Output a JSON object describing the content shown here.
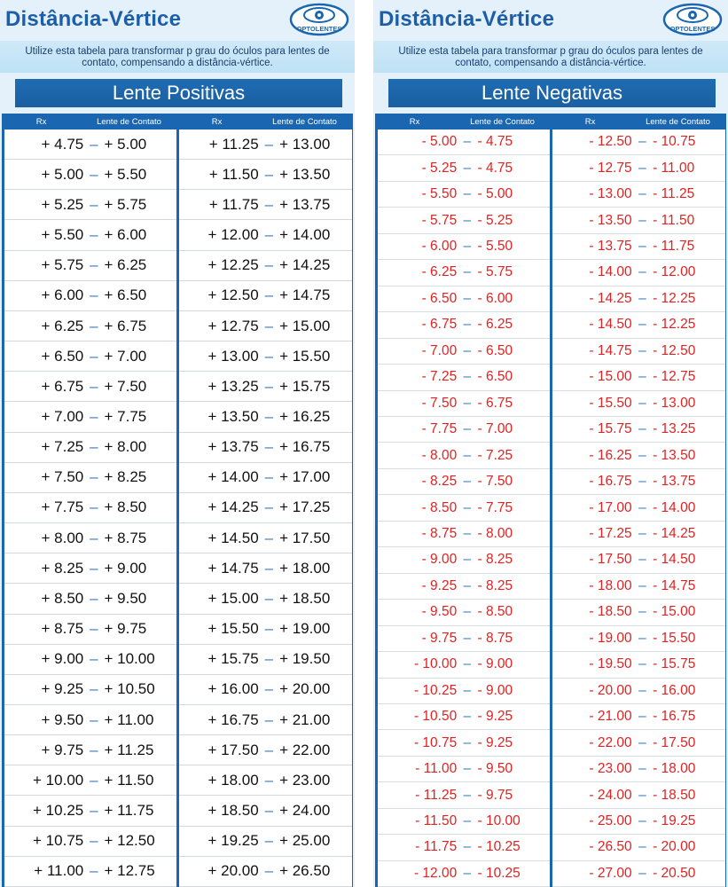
{
  "logo_text": "OPTOLENTES",
  "colors": {
    "primary_blue": "#1a66b0",
    "title_blue": "#1d5ea8",
    "negative_red": "#e22222",
    "panel_bg": "#e4f1fa"
  },
  "header": {
    "rx": "Rx",
    "contact": "Lente de Contato"
  },
  "left": {
    "title": "Distância-Vértice",
    "subtitle": "Utilize esta tabela para transformar p grau do óculos para lentes de contato, compensando a distância-vértice.",
    "banner": "Lente Positivas",
    "col1": [
      [
        "+ 4.75",
        "+ 5.00"
      ],
      [
        "+ 5.00",
        "+ 5.50"
      ],
      [
        "+ 5.25",
        "+ 5.75"
      ],
      [
        "+ 5.50",
        "+ 6.00"
      ],
      [
        "+ 5.75",
        "+ 6.25"
      ],
      [
        "+ 6.00",
        "+ 6.50"
      ],
      [
        "+ 6.25",
        "+ 6.75"
      ],
      [
        "+ 6.50",
        "+ 7.00"
      ],
      [
        "+ 6.75",
        "+ 7.50"
      ],
      [
        "+ 7.00",
        "+ 7.75"
      ],
      [
        "+ 7.25",
        "+ 8.00"
      ],
      [
        "+ 7.50",
        "+ 8.25"
      ],
      [
        "+ 7.75",
        "+ 8.50"
      ],
      [
        "+ 8.00",
        "+ 8.75"
      ],
      [
        "+ 8.25",
        "+ 9.00"
      ],
      [
        "+ 8.50",
        "+ 9.50"
      ],
      [
        "+ 8.75",
        "+ 9.75"
      ],
      [
        "+ 9.00",
        "+ 10.00"
      ],
      [
        "+ 9.25",
        "+ 10.50"
      ],
      [
        "+ 9.50",
        "+ 11.00"
      ],
      [
        "+ 9.75",
        "+ 11.25"
      ],
      [
        "+ 10.00",
        "+ 11.50"
      ],
      [
        "+ 10.25",
        "+ 11.75"
      ],
      [
        "+ 10.75",
        "+ 12.50"
      ],
      [
        "+ 11.00",
        "+ 12.75"
      ]
    ],
    "col2": [
      [
        "+ 11.25",
        "+ 13.00"
      ],
      [
        "+ 11.50",
        "+ 13.50"
      ],
      [
        "+ 11.75",
        "+ 13.75"
      ],
      [
        "+ 12.00",
        "+ 14.00"
      ],
      [
        "+ 12.25",
        "+ 14.25"
      ],
      [
        "+ 12.50",
        "+ 14.75"
      ],
      [
        "+ 12.75",
        "+ 15.00"
      ],
      [
        "+ 13.00",
        "+ 15.50"
      ],
      [
        "+ 13.25",
        "+ 15.75"
      ],
      [
        "+ 13.50",
        "+ 16.25"
      ],
      [
        "+ 13.75",
        "+ 16.75"
      ],
      [
        "+ 14.00",
        "+ 17.00"
      ],
      [
        "+ 14.25",
        "+ 17.25"
      ],
      [
        "+ 14.50",
        "+ 17.50"
      ],
      [
        "+ 14.75",
        "+ 18.00"
      ],
      [
        "+ 15.00",
        "+ 18.50"
      ],
      [
        "+ 15.50",
        "+ 19.00"
      ],
      [
        "+ 15.75",
        "+ 19.50"
      ],
      [
        "+ 16.00",
        "+ 20.00"
      ],
      [
        "+ 16.75",
        "+ 21.00"
      ],
      [
        "+ 17.50",
        "+ 22.00"
      ],
      [
        "+ 18.00",
        "+ 23.00"
      ],
      [
        "+ 18.50",
        "+ 24.00"
      ],
      [
        "+ 19.25",
        "+ 25.00"
      ],
      [
        "+ 20.00",
        "+ 26.50"
      ]
    ]
  },
  "right": {
    "title": "Distância-Vértice",
    "subtitle": "Utilize esta tabela para transformar p grau do óculos para lentes de contato, compensando a distância-vértice.",
    "banner": "Lente Negativas",
    "col1": [
      [
        "- 5.00",
        "- 4.75"
      ],
      [
        "- 5.25",
        "- 4.75"
      ],
      [
        "- 5.50",
        "- 5.00"
      ],
      [
        "- 5.75",
        "- 5.25"
      ],
      [
        "- 6.00",
        "- 5.50"
      ],
      [
        "- 6.25",
        "- 5.75"
      ],
      [
        "- 6.50",
        "- 6.00"
      ],
      [
        "- 6.75",
        "- 6.25"
      ],
      [
        "- 7.00",
        "- 6.50"
      ],
      [
        "- 7.25",
        "- 6.50"
      ],
      [
        "- 7.50",
        "- 6.75"
      ],
      [
        "- 7.75",
        "- 7.00"
      ],
      [
        "- 8.00",
        "- 7.25"
      ],
      [
        "- 8.25",
        "- 7.50"
      ],
      [
        "- 8.50",
        "- 7.75"
      ],
      [
        "- 8.75",
        "- 8.00"
      ],
      [
        "- 9.00",
        "- 8.25"
      ],
      [
        "- 9.25",
        "- 8.25"
      ],
      [
        "- 9.50",
        "- 8.50"
      ],
      [
        "- 9.75",
        "- 8.75"
      ],
      [
        "- 10.00",
        "- 9.00"
      ],
      [
        "- 10.25",
        "- 9.00"
      ],
      [
        "- 10.50",
        "- 9.25"
      ],
      [
        "- 10.75",
        "- 9.25"
      ],
      [
        "- 11.00",
        "- 9.50"
      ],
      [
        "- 11.25",
        "- 9.75"
      ],
      [
        "- 11.50",
        "- 10.00"
      ],
      [
        "- 11.75",
        "- 10.25"
      ],
      [
        "- 12.00",
        "- 10.25"
      ]
    ],
    "col2": [
      [
        "- 12.50",
        "- 10.75"
      ],
      [
        "- 12.75",
        "- 11.00"
      ],
      [
        "- 13.00",
        "- 11.25"
      ],
      [
        "- 13.50",
        "- 11.50"
      ],
      [
        "- 13.75",
        "- 11.75"
      ],
      [
        "- 14.00",
        "- 12.00"
      ],
      [
        "- 14.25",
        "- 12.25"
      ],
      [
        "- 14.50",
        "- 12.25"
      ],
      [
        "- 14.75",
        "- 12.50"
      ],
      [
        "- 15.00",
        "- 12.75"
      ],
      [
        "- 15.50",
        "- 13.00"
      ],
      [
        "- 15.75",
        "- 13.25"
      ],
      [
        "- 16.25",
        "- 13.50"
      ],
      [
        "- 16.75",
        "- 13.75"
      ],
      [
        "- 17.00",
        "- 14.00"
      ],
      [
        "- 17.25",
        "- 14.25"
      ],
      [
        "- 17.50",
        "- 14.50"
      ],
      [
        "- 18.00",
        "- 14.75"
      ],
      [
        "- 18.50",
        "- 15.00"
      ],
      [
        "- 19.00",
        "- 15.50"
      ],
      [
        "- 19.50",
        "- 15.75"
      ],
      [
        "- 20.00",
        "- 16.00"
      ],
      [
        "- 21.00",
        "- 16.75"
      ],
      [
        "- 22.00",
        "- 17.50"
      ],
      [
        "- 23.00",
        "- 18.00"
      ],
      [
        "- 24.00",
        "- 18.50"
      ],
      [
        "- 25.00",
        "- 19.25"
      ],
      [
        "- 26.50",
        "- 20.00"
      ],
      [
        "- 27.00",
        "- 20.50"
      ]
    ]
  }
}
